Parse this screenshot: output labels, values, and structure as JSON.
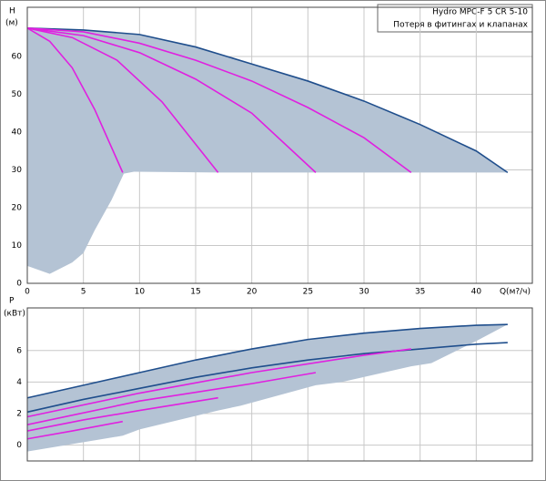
{
  "chart_data": [
    {
      "type": "line",
      "title": "Hydro MPC-F 5 CR 5-10",
      "subtitle": "Потеря в фитингах и клапанах",
      "y_label": "H",
      "y_unit": "(м)",
      "x_label": "Q(м?/ч)",
      "xlim": [
        0,
        45
      ],
      "ylim": [
        0,
        73
      ],
      "xticks": [
        0,
        5,
        10,
        15,
        20,
        25,
        30,
        35,
        40
      ],
      "yticks": [
        0,
        10,
        20,
        30,
        40,
        50,
        60
      ],
      "grid": true,
      "series": [
        {
          "fill": true,
          "color": "#b4c3d4",
          "x": [
            0,
            5,
            10,
            15,
            20,
            25,
            30,
            35,
            40,
            42.8,
            36,
            34.2,
            27,
            25.7,
            18,
            17,
            9.5,
            8.6,
            7.5,
            6,
            5,
            4,
            2,
            0
          ],
          "values": [
            67.5,
            67,
            65.8,
            62.5,
            58,
            53.5,
            48.2,
            42,
            35,
            29.3,
            29.3,
            29.3,
            29.3,
            29.3,
            29.3,
            29.3,
            29.5,
            29,
            22,
            14,
            8,
            5.5,
            2.5,
            4.6
          ]
        },
        {
          "color": "#1f4e8c",
          "x": [
            0,
            5,
            10,
            15,
            20,
            25,
            30,
            35,
            40,
            42.8
          ],
          "values": [
            67.5,
            67,
            65.8,
            62.5,
            58,
            53.5,
            48.2,
            42,
            35,
            29.3
          ]
        },
        {
          "color": "#e020e0",
          "x": [
            0,
            5,
            10,
            15,
            20,
            25,
            30,
            34.2
          ],
          "values": [
            67.5,
            66.5,
            63.5,
            59,
            53.5,
            46.5,
            38.5,
            29.3
          ]
        },
        {
          "color": "#e020e0",
          "x": [
            0,
            5,
            10,
            15,
            20,
            25.7
          ],
          "values": [
            67.5,
            65.5,
            61,
            54,
            45,
            29.3
          ]
        },
        {
          "color": "#e020e0",
          "x": [
            0,
            4,
            8,
            12,
            17
          ],
          "values": [
            67.5,
            65,
            59,
            48,
            29.3
          ]
        },
        {
          "color": "#e020e0",
          "x": [
            0,
            2,
            4,
            6,
            8.5
          ],
          "values": [
            67.5,
            64,
            57,
            46,
            29.3
          ]
        }
      ]
    },
    {
      "type": "line",
      "y_label": "P",
      "y_unit": "(кВт)",
      "xlim": [
        0,
        45
      ],
      "ylim": [
        -1,
        8.7
      ],
      "yticks": [
        0,
        2,
        4,
        6
      ],
      "grid": true,
      "series": [
        {
          "fill": true,
          "color": "#b4c3d4",
          "x": [
            0,
            5,
            10,
            15,
            20,
            25,
            30,
            35,
            40,
            42.8,
            40,
            36,
            34.2,
            28,
            25.7,
            19,
            17,
            10,
            8.5,
            0
          ],
          "values": [
            3.0,
            3.8,
            4.6,
            5.4,
            6.1,
            6.7,
            7.1,
            7.4,
            7.6,
            7.65,
            6.6,
            5.2,
            5.0,
            4.0,
            3.8,
            2.5,
            2.2,
            1.0,
            0.6,
            -0.4
          ]
        },
        {
          "color": "#1f4e8c",
          "x": [
            0,
            5,
            10,
            15,
            20,
            25,
            30,
            35,
            40,
            42.8
          ],
          "values": [
            3.0,
            3.8,
            4.6,
            5.4,
            6.1,
            6.7,
            7.1,
            7.4,
            7.6,
            7.65
          ]
        },
        {
          "color": "#1f4e8c",
          "x": [
            0,
            5,
            10,
            15,
            20,
            25,
            30,
            35,
            40,
            42.8
          ],
          "values": [
            2.1,
            2.9,
            3.6,
            4.3,
            4.9,
            5.4,
            5.8,
            6.1,
            6.4,
            6.5
          ]
        },
        {
          "color": "#e020e0",
          "x": [
            0,
            10,
            20,
            30,
            34.2
          ],
          "values": [
            1.8,
            3.3,
            4.6,
            5.7,
            6.1
          ]
        },
        {
          "color": "#e020e0",
          "x": [
            0,
            10,
            20,
            25.7
          ],
          "values": [
            1.3,
            2.8,
            3.9,
            4.6
          ]
        },
        {
          "color": "#e020e0",
          "x": [
            0,
            5,
            10,
            17
          ],
          "values": [
            0.9,
            1.6,
            2.2,
            3.0
          ]
        },
        {
          "color": "#e020e0",
          "x": [
            0,
            4,
            8.5
          ],
          "values": [
            0.4,
            0.9,
            1.5
          ]
        }
      ]
    }
  ]
}
